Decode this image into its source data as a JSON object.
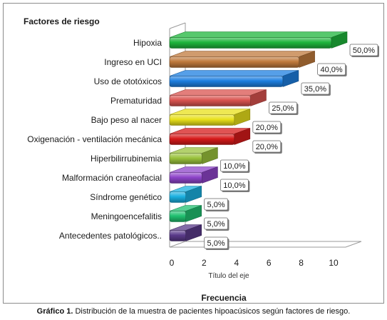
{
  "chart_data": {
    "type": "bar",
    "orientation": "horizontal",
    "title": "Factores de riesgo",
    "xlabel": "Frecuencia",
    "axis_title": "Título del eje",
    "categories": [
      "Hipoxia",
      "Ingreso en UCI",
      "Uso de ototóxicos",
      "Prematuridad",
      "Bajo peso al nacer",
      "Oxigenación - ventilación mecánica",
      "Hiperbilirrubinemia",
      "Malformación craneofacial",
      "Síndrome genético",
      "Meningoencefalitis",
      "Antecedentes patológicos.."
    ],
    "values": [
      10,
      8,
      7,
      5,
      4,
      4,
      2,
      2,
      1,
      1,
      1
    ],
    "data_labels": [
      "50,0%",
      "40,0%",
      "35,0%",
      "25,0%",
      "20,0%",
      "20,0%",
      "10,0%",
      "10,0%",
      "5,0%",
      "5,0%",
      "5,0%"
    ],
    "colors": [
      "#1fb53c",
      "#c07a3c",
      "#1d7fe0",
      "#d9534f",
      "#e8e01a",
      "#d61a1a",
      "#9ac23c",
      "#8e44c9",
      "#1ab0e0",
      "#20c070",
      "#5a3a8a"
    ],
    "xticks": [
      "0",
      "2",
      "4",
      "6",
      "8",
      "10"
    ],
    "xlim": [
      0,
      10
    ],
    "grid": false,
    "legend": "none"
  },
  "caption": {
    "label": "Gráfico 1.",
    "text": " Distribución de la muestra de pacientes hipoacúsicos según factores de riesgo."
  }
}
